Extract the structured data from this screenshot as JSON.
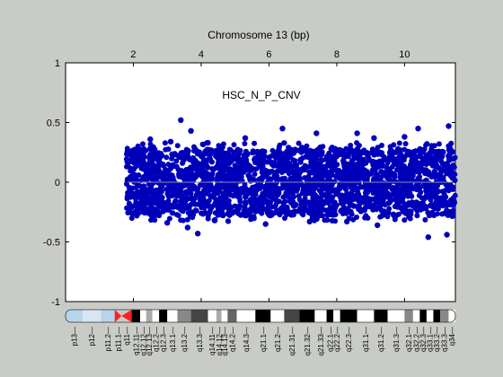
{
  "chart_data": {
    "type": "scatter",
    "title": "Chromosome 13 (bp)",
    "annotation": "HSC_N_P_CNV",
    "xlim": [
      0,
      11.5
    ],
    "ylim": [
      -1,
      1
    ],
    "x_tick_position": "top",
    "x_ticks": [
      2,
      4,
      6,
      8,
      10
    ],
    "y_ticks": [
      1,
      0.5,
      0,
      -0.5,
      -1
    ],
    "grid": false,
    "baseline_y": 0,
    "point_color": "#0000bb",
    "baseline_color": "#8a8ab0",
    "data_extent_x": [
      1.8,
      11.5
    ],
    "points_sample": [
      {
        "x": 1.9,
        "y": 0.18
      },
      {
        "x": 2.3,
        "y": 0.28
      },
      {
        "x": 2.5,
        "y": 0.36
      },
      {
        "x": 3.1,
        "y": 0.34
      },
      {
        "x": 3.4,
        "y": 0.52
      },
      {
        "x": 3.7,
        "y": 0.43
      },
      {
        "x": 4.2,
        "y": 0.33
      },
      {
        "x": 5.3,
        "y": 0.37
      },
      {
        "x": 6.4,
        "y": 0.45
      },
      {
        "x": 7.4,
        "y": 0.41
      },
      {
        "x": 8.6,
        "y": 0.41
      },
      {
        "x": 9.1,
        "y": 0.37
      },
      {
        "x": 10.0,
        "y": 0.38
      },
      {
        "x": 10.4,
        "y": 0.45
      },
      {
        "x": 11.3,
        "y": 0.47
      },
      {
        "x": 2.1,
        "y": -0.28
      },
      {
        "x": 3.0,
        "y": -0.34
      },
      {
        "x": 3.6,
        "y": -0.38
      },
      {
        "x": 3.9,
        "y": -0.43
      },
      {
        "x": 4.4,
        "y": -0.32
      },
      {
        "x": 5.9,
        "y": -0.35
      },
      {
        "x": 7.2,
        "y": -0.33
      },
      {
        "x": 8.3,
        "y": -0.33
      },
      {
        "x": 9.2,
        "y": -0.36
      },
      {
        "x": 10.7,
        "y": -0.46
      },
      {
        "x": 11.25,
        "y": -0.44
      }
    ]
  },
  "ideogram": {
    "bands": [
      {
        "label": "p13",
        "x": 0.0,
        "color": "#b7d4ec"
      },
      {
        "label": "p12",
        "x": 0.5,
        "color": "#d8e6f2"
      },
      {
        "label": "p11.2",
        "x": 1.05,
        "color": "#b7d4ec"
      },
      {
        "label": "p11.1",
        "x": 1.45,
        "color": "#ff2020"
      },
      {
        "label": "q11",
        "x": 1.65,
        "color": "#ff2020"
      },
      {
        "label": "q12.11",
        "x": 1.95,
        "color": "#000000"
      },
      {
        "label": "q12.12",
        "x": 2.2,
        "color": "#ffffff"
      },
      {
        "label": "q12.13",
        "x": 2.38,
        "color": "#aaaaaa"
      },
      {
        "label": "q12.2",
        "x": 2.56,
        "color": "#ffffff"
      },
      {
        "label": "q12.3",
        "x": 2.76,
        "color": "#000000"
      },
      {
        "label": "q13.1",
        "x": 3.0,
        "color": "#ffffff"
      },
      {
        "label": "q13.2",
        "x": 3.3,
        "color": "#888888"
      },
      {
        "label": "q13.3",
        "x": 3.7,
        "color": "#444444"
      },
      {
        "label": "q14.11",
        "x": 4.2,
        "color": "#ffffff"
      },
      {
        "label": "q14.12",
        "x": 4.45,
        "color": "#aaaaaa"
      },
      {
        "label": "q14.13",
        "x": 4.6,
        "color": "#ffffff"
      },
      {
        "label": "q14.2",
        "x": 4.78,
        "color": "#666666"
      },
      {
        "label": "q14.3",
        "x": 5.05,
        "color": "#ffffff"
      },
      {
        "label": "q21.1",
        "x": 5.6,
        "color": "#000000"
      },
      {
        "label": "q21.2",
        "x": 6.05,
        "color": "#ffffff"
      },
      {
        "label": "q21.31",
        "x": 6.45,
        "color": "#444444"
      },
      {
        "label": "q21.32",
        "x": 6.9,
        "color": "#000000"
      },
      {
        "label": "q21.33",
        "x": 7.35,
        "color": "#ffffff"
      },
      {
        "label": "q22.1",
        "x": 7.7,
        "color": "#000000"
      },
      {
        "label": "q22.2",
        "x": 7.9,
        "color": "#ffffff"
      },
      {
        "label": "q22.3",
        "x": 8.1,
        "color": "#000000"
      },
      {
        "label": "q31.1",
        "x": 8.6,
        "color": "#ffffff"
      },
      {
        "label": "q31.2",
        "x": 9.1,
        "color": "#000000"
      },
      {
        "label": "q31.3",
        "x": 9.5,
        "color": "#ffffff"
      },
      {
        "label": "q32.1",
        "x": 10.0,
        "color": "#888888"
      },
      {
        "label": "q32.2",
        "x": 10.25,
        "color": "#ffffff"
      },
      {
        "label": "q32.3",
        "x": 10.45,
        "color": "#000000"
      },
      {
        "label": "q33.1",
        "x": 10.65,
        "color": "#ffffff"
      },
      {
        "label": "q33.2",
        "x": 10.85,
        "color": "#000000"
      },
      {
        "label": "q33.3",
        "x": 11.05,
        "color": "#888888"
      },
      {
        "label": "q34",
        "x": 11.3,
        "color": "#ffffff"
      }
    ]
  }
}
